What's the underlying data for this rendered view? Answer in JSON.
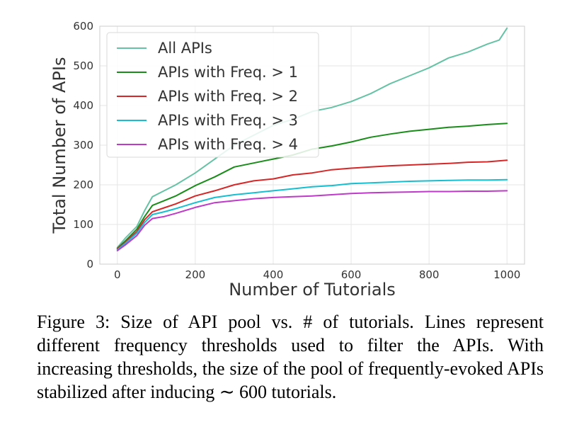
{
  "chart_data": {
    "type": "line",
    "xlabel": "Number of Tutorials",
    "ylabel": "Total Number of APIs",
    "xlim": [
      -45,
      1045
    ],
    "ylim": [
      0,
      600
    ],
    "xticks": [
      0,
      200,
      400,
      600,
      800,
      1000
    ],
    "yticks": [
      0,
      100,
      200,
      300,
      400,
      500,
      600
    ],
    "grid": true,
    "legend_position": "top-left",
    "series": [
      {
        "name": "All APIs",
        "color": "#66c2a5",
        "x": [
          0,
          20,
          50,
          70,
          90,
          120,
          150,
          200,
          250,
          300,
          350,
          400,
          450,
          500,
          550,
          600,
          650,
          700,
          750,
          800,
          850,
          900,
          950,
          980,
          1000
        ],
        "y": [
          42,
          65,
          95,
          135,
          170,
          185,
          200,
          230,
          265,
          300,
          325,
          350,
          365,
          385,
          395,
          410,
          430,
          455,
          475,
          495,
          520,
          535,
          555,
          565,
          595
        ]
      },
      {
        "name": "APIs with Freq. > 1",
        "color": "#1a8c1a",
        "x": [
          0,
          20,
          50,
          70,
          90,
          120,
          150,
          200,
          250,
          300,
          350,
          400,
          450,
          500,
          550,
          600,
          650,
          700,
          750,
          800,
          850,
          900,
          950,
          1000
        ],
        "y": [
          40,
          58,
          88,
          120,
          148,
          160,
          172,
          198,
          220,
          245,
          255,
          265,
          275,
          290,
          298,
          308,
          320,
          328,
          335,
          340,
          345,
          348,
          352,
          355
        ]
      },
      {
        "name": "APIs with Freq. > 2",
        "color": "#d62728",
        "x": [
          0,
          20,
          50,
          70,
          90,
          120,
          150,
          200,
          250,
          300,
          350,
          400,
          450,
          500,
          550,
          600,
          650,
          700,
          750,
          800,
          850,
          900,
          950,
          1000
        ],
        "y": [
          38,
          55,
          82,
          112,
          132,
          142,
          152,
          172,
          185,
          200,
          210,
          215,
          225,
          230,
          238,
          242,
          245,
          248,
          250,
          252,
          254,
          257,
          258,
          262
        ]
      },
      {
        "name": "APIs with Freq. > 3",
        "color": "#17becf",
        "x": [
          0,
          20,
          50,
          70,
          90,
          120,
          150,
          200,
          250,
          300,
          350,
          400,
          450,
          500,
          550,
          600,
          650,
          700,
          750,
          800,
          850,
          900,
          950,
          1000
        ],
        "y": [
          36,
          52,
          78,
          105,
          125,
          132,
          140,
          155,
          168,
          175,
          180,
          185,
          190,
          195,
          198,
          203,
          205,
          207,
          209,
          210,
          211,
          212,
          212,
          213
        ]
      },
      {
        "name": "APIs with Freq. > 4",
        "color": "#bf3ac9",
        "x": [
          0,
          20,
          50,
          70,
          90,
          120,
          150,
          200,
          250,
          300,
          350,
          400,
          450,
          500,
          550,
          600,
          650,
          700,
          750,
          800,
          850,
          900,
          950,
          1000
        ],
        "y": [
          34,
          48,
          72,
          98,
          115,
          120,
          128,
          143,
          155,
          160,
          165,
          168,
          170,
          172,
          175,
          178,
          180,
          181,
          182,
          183,
          183,
          184,
          184,
          185
        ]
      }
    ]
  },
  "caption": "Figure 3: Size of API pool vs. # of tutorials. Lines represent different frequency thresholds used to filter the APIs. With increasing thresholds, the size of the pool of frequently-evoked APIs stabilized after inducing ∼ 600 tutorials."
}
